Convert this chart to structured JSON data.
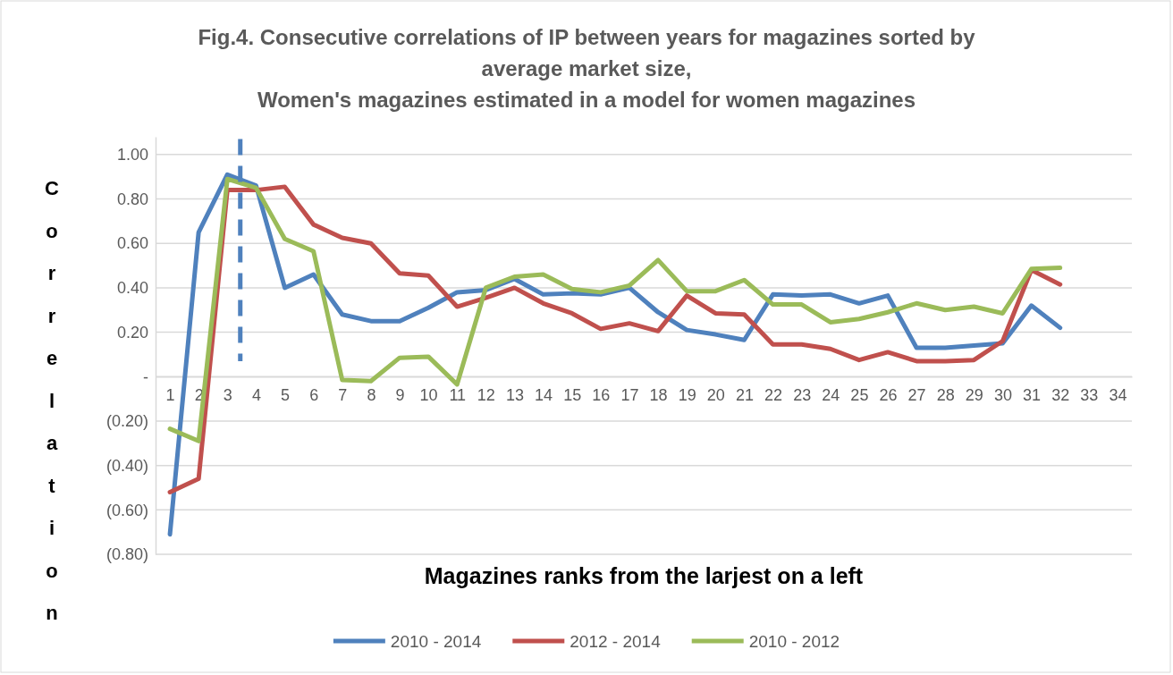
{
  "chart_data": {
    "type": "line",
    "title": "Fig.4. Consecutive correlations of IP between years for magazines sorted by\naverage market size,\nWomen's magazines estimated in a model for women magazines",
    "xlabel": "Magazines ranks from the larjest on a left",
    "ylabel": "Correlation",
    "x": [
      1,
      2,
      3,
      4,
      5,
      6,
      7,
      8,
      9,
      10,
      11,
      12,
      13,
      14,
      15,
      16,
      17,
      18,
      19,
      20,
      21,
      22,
      23,
      24,
      25,
      26,
      27,
      28,
      29,
      30,
      31,
      32
    ],
    "xlim": [
      0.5,
      34.5
    ],
    "xticks": [
      1,
      2,
      3,
      4,
      5,
      6,
      7,
      8,
      9,
      10,
      11,
      12,
      13,
      14,
      15,
      16,
      17,
      18,
      19,
      20,
      21,
      22,
      23,
      24,
      25,
      26,
      27,
      28,
      29,
      30,
      31,
      32,
      33,
      34
    ],
    "ylim": [
      -0.8,
      1.08
    ],
    "yticks": [
      {
        "value": 1,
        "label": "1.00"
      },
      {
        "value": 0.8,
        "label": "0.80"
      },
      {
        "value": 0.6,
        "label": "0.60"
      },
      {
        "value": 0.4,
        "label": "0.40"
      },
      {
        "value": 0.2,
        "label": "0.20"
      },
      {
        "value": 0,
        "label": "-"
      },
      {
        "value": -0.2,
        "label": "(0.20)"
      },
      {
        "value": -0.4,
        "label": "(0.40)"
      },
      {
        "value": -0.6,
        "label": "(0.60)"
      },
      {
        "value": -0.8,
        "label": "(0.80)"
      }
    ],
    "grid": "y",
    "legend": "bottom",
    "line_style": "solid",
    "marker": "none",
    "series": [
      {
        "name": "2010 - 2014",
        "color": "#4f81bd",
        "values": [
          -0.71,
          0.65,
          0.91,
          0.86,
          0.4,
          0.46,
          0.28,
          0.25,
          0.25,
          0.31,
          0.38,
          0.39,
          0.44,
          0.37,
          0.375,
          0.37,
          0.4,
          0.29,
          0.21,
          0.19,
          0.165,
          0.37,
          0.365,
          0.37,
          0.33,
          0.365,
          0.13,
          0.13,
          0.14,
          0.15,
          0.32,
          0.22
        ]
      },
      {
        "name": "2012 - 2014",
        "color": "#c0504d",
        "values": [
          -0.52,
          -0.46,
          0.84,
          0.84,
          0.855,
          0.685,
          0.625,
          0.6,
          0.465,
          0.455,
          0.315,
          0.355,
          0.4,
          0.33,
          0.285,
          0.215,
          0.24,
          0.205,
          0.365,
          0.285,
          0.28,
          0.145,
          0.145,
          0.125,
          0.075,
          0.11,
          0.07,
          0.07,
          0.075,
          0.16,
          0.48,
          0.415
        ]
      },
      {
        "name": "2010 - 2012",
        "color": "#9bbb59",
        "values": [
          -0.235,
          -0.29,
          0.89,
          0.85,
          0.62,
          0.565,
          -0.015,
          -0.02,
          0.085,
          0.09,
          -0.035,
          0.4,
          0.45,
          0.46,
          0.395,
          0.38,
          0.41,
          0.525,
          0.385,
          0.385,
          0.435,
          0.325,
          0.325,
          0.245,
          0.26,
          0.29,
          0.33,
          0.3,
          0.315,
          0.285,
          0.485,
          0.49
        ]
      },
      {
        "color": "#4f81bd",
        "x": [
          3.45,
          3.45
        ],
        "values": [
          1.07,
          0.07
        ],
        "line_style": "dashed"
      }
    ]
  }
}
